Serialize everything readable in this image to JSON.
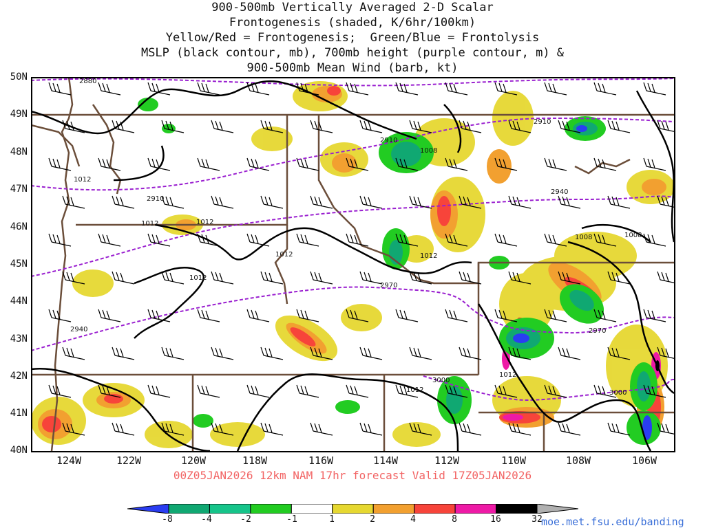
{
  "title_lines": [
    "900-500mb Vertically Averaged 2-D Scalar",
    "Frontogenesis (shaded, K/6hr/100km)",
    "Yellow/Red = Frontogenesis;  Green/Blue = Frontolysis",
    "MSLP (black contour, mb), 700mb height (purple contour, m) &",
    "900-500mb Mean Wind (barb, kt)"
  ],
  "lat_labels": [
    "50N",
    "49N",
    "48N",
    "47N",
    "46N",
    "45N",
    "44N",
    "43N",
    "42N",
    "41N",
    "40N"
  ],
  "lon_labels": [
    "124W",
    "122W",
    "120W",
    "118W",
    "116W",
    "114W",
    "112W",
    "110W",
    "108W",
    "106W"
  ],
  "valid_line": "00Z05JAN2026 12km NAM 17hr forecast Valid 17Z05JAN2026",
  "colorbar": {
    "labels": [
      "-8",
      "-4",
      "-2",
      "-1",
      "1",
      "2",
      "4",
      "8",
      "16",
      "32"
    ],
    "colors": [
      "#2a3df2",
      "#10a872",
      "#16c48a",
      "#22cc22",
      "#ffffff",
      "#e6d831",
      "#f2a030",
      "#f7443a",
      "#ee1aa6",
      "#000000",
      "#b0b0b0"
    ]
  },
  "credit": "moe.met.fsu.edu/banding",
  "mslp_labels": [
    "1012",
    "1012",
    "1012",
    "1012",
    "1012",
    "1012",
    "1012",
    "1012",
    "1008",
    "1008",
    "1008"
  ],
  "height_labels": [
    "2880",
    "2910",
    "2910",
    "2910",
    "2940",
    "2940",
    "2970",
    "2970",
    "3000",
    "3000"
  ],
  "colors": {
    "mslp_contour": "#000000",
    "height_contour": "#9a1fd0",
    "borders": "#6b4e3a",
    "valid_text": "#f26464",
    "credit_text": "#3a6fd8"
  }
}
